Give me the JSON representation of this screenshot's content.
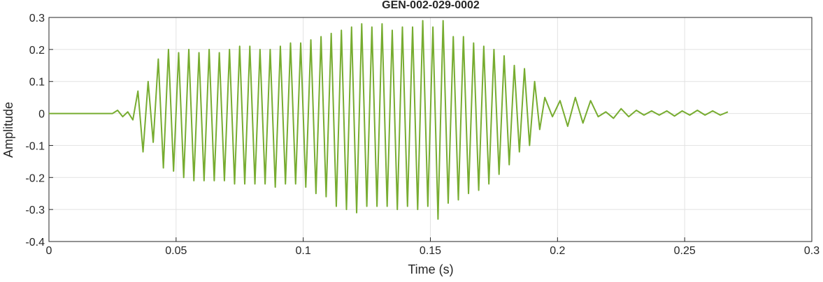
{
  "chart_data": {
    "type": "line",
    "title": "GEN-002-029-0002",
    "xlabel": "Time (s)",
    "ylabel": "Amplitude",
    "x": [
      0,
      0.01,
      0.02,
      0.025,
      0.027,
      0.029,
      0.031,
      0.033,
      0.035,
      0.037,
      0.039,
      0.041,
      0.043,
      0.045,
      0.047,
      0.049,
      0.051,
      0.053,
      0.055,
      0.057,
      0.059,
      0.061,
      0.063,
      0.065,
      0.067,
      0.069,
      0.071,
      0.073,
      0.075,
      0.077,
      0.079,
      0.081,
      0.083,
      0.085,
      0.087,
      0.089,
      0.091,
      0.093,
      0.095,
      0.097,
      0.099,
      0.101,
      0.103,
      0.105,
      0.107,
      0.109,
      0.111,
      0.113,
      0.115,
      0.117,
      0.119,
      0.121,
      0.123,
      0.125,
      0.127,
      0.129,
      0.131,
      0.133,
      0.135,
      0.137,
      0.139,
      0.141,
      0.143,
      0.145,
      0.147,
      0.149,
      0.151,
      0.153,
      0.155,
      0.157,
      0.159,
      0.161,
      0.163,
      0.165,
      0.167,
      0.169,
      0.171,
      0.173,
      0.175,
      0.177,
      0.179,
      0.181,
      0.183,
      0.185,
      0.187,
      0.189,
      0.191,
      0.193,
      0.195,
      0.198,
      0.201,
      0.204,
      0.207,
      0.21,
      0.213,
      0.216,
      0.219,
      0.222,
      0.225,
      0.228,
      0.231,
      0.234,
      0.237,
      0.24,
      0.243,
      0.246,
      0.249,
      0.252,
      0.255,
      0.258,
      0.261,
      0.264,
      0.267
    ],
    "series": [
      {
        "name": "Amplitude",
        "color": "#77ac30",
        "values": [
          0,
          0,
          0,
          0,
          0.01,
          -0.01,
          0.005,
          -0.02,
          0.07,
          -0.12,
          0.1,
          -0.09,
          0.17,
          -0.17,
          0.2,
          -0.18,
          0.19,
          -0.2,
          0.2,
          -0.21,
          0.19,
          -0.21,
          0.2,
          -0.21,
          0.19,
          -0.21,
          0.2,
          -0.22,
          0.21,
          -0.22,
          0.21,
          -0.22,
          0.2,
          -0.22,
          0.2,
          -0.23,
          0.21,
          -0.22,
          0.22,
          -0.22,
          0.22,
          -0.23,
          0.23,
          -0.25,
          0.24,
          -0.26,
          0.25,
          -0.29,
          0.26,
          -0.3,
          0.27,
          -0.31,
          0.28,
          -0.29,
          0.27,
          -0.29,
          0.28,
          -0.29,
          0.26,
          -0.3,
          0.27,
          -0.29,
          0.27,
          -0.3,
          0.29,
          -0.29,
          0.27,
          -0.33,
          0.29,
          -0.28,
          0.24,
          -0.27,
          0.24,
          -0.25,
          0.22,
          -0.24,
          0.21,
          -0.22,
          0.2,
          -0.19,
          0.18,
          -0.16,
          0.15,
          -0.12,
          0.14,
          -0.1,
          0.1,
          -0.05,
          0.05,
          -0.01,
          0.04,
          -0.04,
          0.05,
          -0.03,
          0.04,
          -0.01,
          0.005,
          -0.015,
          0.015,
          -0.01,
          0.01,
          -0.005,
          0.008,
          -0.005,
          0.008,
          -0.008,
          0.008,
          -0.005,
          0.01,
          -0.005,
          0.008,
          -0.005,
          0.005
        ]
      }
    ],
    "xlim": [
      0,
      0.3
    ],
    "xticks": [
      0,
      0.05,
      0.1,
      0.15,
      0.2,
      0.25,
      0.3
    ],
    "ylim": [
      -0.4,
      0.3
    ],
    "yticks": [
      -0.4,
      -0.3,
      -0.2,
      -0.1,
      0,
      0.1,
      0.2,
      0.3
    ],
    "grid": true
  }
}
